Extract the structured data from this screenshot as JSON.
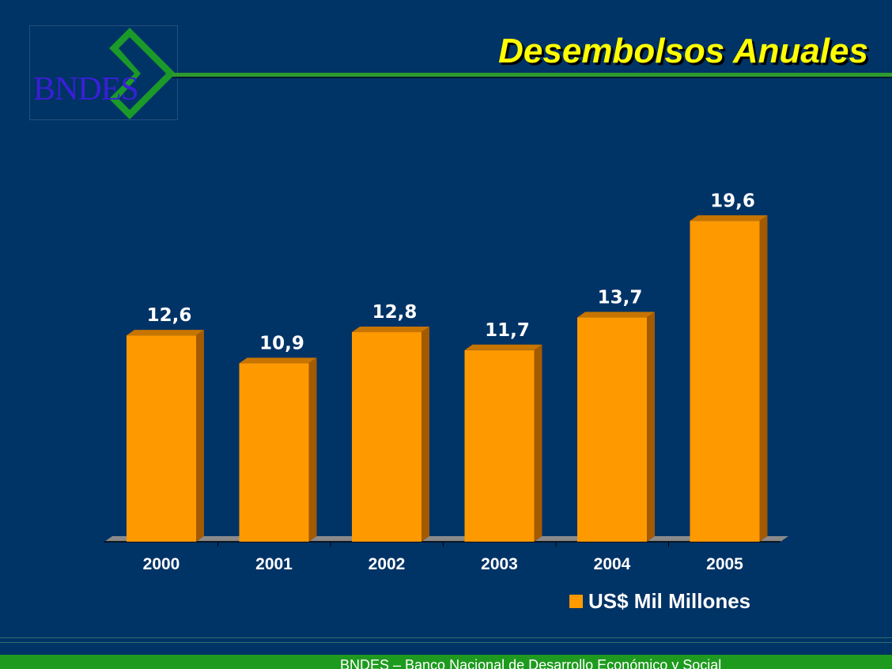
{
  "logo": {
    "text": "BNDES"
  },
  "title": "Desembolsos Anuales",
  "footer": {
    "text": "BNDES – Banco Nacional de Desarrollo Económico y Social"
  },
  "colors": {
    "background": "#003366",
    "bar": "#ff9900",
    "title": "#ffff00",
    "accent_green": "#2e9a2e"
  },
  "chart_data": {
    "type": "bar",
    "categories": [
      "2000",
      "2001",
      "2002",
      "2003",
      "2004",
      "2005"
    ],
    "series": [
      {
        "name": "US$ Mil Millones",
        "values": [
          12.6,
          10.9,
          12.8,
          11.7,
          13.7,
          19.6
        ]
      }
    ],
    "data_labels": [
      "12,6",
      "10,9",
      "12,8",
      "11,7",
      "13,7",
      "19,6"
    ],
    "ylim": [
      0,
      20
    ],
    "grid": false,
    "legend": "bottom-right"
  }
}
